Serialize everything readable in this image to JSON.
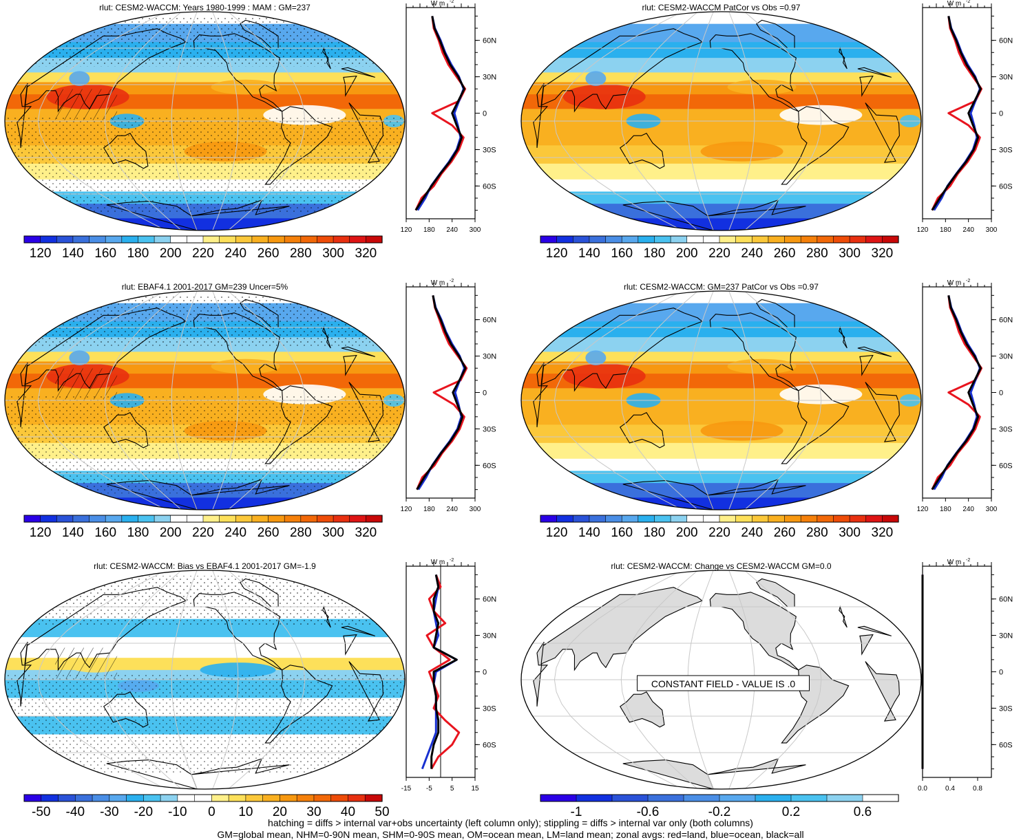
{
  "colors": {
    "map_colorbar": [
      "#2a00e6",
      "#1230e0",
      "#2a52d8",
      "#3a70dc",
      "#4a8ee6",
      "#58a8ee",
      "#2ab0ee",
      "#4ac2f0",
      "#8cd2f0",
      "#ffffff",
      "#ffffff",
      "#fff08a",
      "#fde05a",
      "#fbc83a",
      "#f9b020",
      "#f79810",
      "#f5800a",
      "#f26808",
      "#ee4c08",
      "#e83010",
      "#de1414",
      "#c80808"
    ],
    "bias_colorbar": [
      "#2a00e6",
      "#1230e0",
      "#2a52d8",
      "#3a70dc",
      "#4a8ee6",
      "#58a8ee",
      "#2ab0ee",
      "#4ac2f0",
      "#8cd2f0",
      "#ffffff",
      "#ffffff",
      "#fff08a",
      "#fde05a",
      "#fbc83a",
      "#f9b020",
      "#f79810",
      "#f5800a",
      "#f26808",
      "#ee4c08",
      "#e83010",
      "#c80808"
    ],
    "change_colorbar": [
      "#2a00e6",
      "#1230e0",
      "#2a52d8",
      "#3a70dc",
      "#4a8ee6",
      "#58a8ee",
      "#2ab0ee",
      "#4ac2f0",
      "#8cd2f0",
      "#ffffff"
    ],
    "land_line": "#e8141e",
    "ocean_line": "#1830d0",
    "all_line": "#000000",
    "land_fill": "#dcdcdc"
  },
  "chart_data": [
    {
      "id": "panel-model-mam",
      "type": "heatmap",
      "title": "rlut: CESM2-WACCM: Years 1980-1999 : MAM : GM=237",
      "colorbar_ticks": [
        "120",
        "140",
        "160",
        "180",
        "200",
        "220",
        "240",
        "260",
        "280",
        "300",
        "320"
      ],
      "zonal": {
        "units": "W m-2",
        "ylabels": [
          "60N",
          "30N",
          "0",
          "30S",
          "60S"
        ],
        "xticks": [
          "120",
          "180",
          "240",
          "300"
        ],
        "xlim": [
          120,
          300
        ],
        "lat": [
          80,
          70,
          60,
          50,
          40,
          30,
          20,
          10,
          0,
          -10,
          -20,
          -30,
          -40,
          -50,
          -60,
          -70,
          -80
        ],
        "land": [
          188,
          192,
          205,
          215,
          230,
          252,
          274,
          258,
          188,
          240,
          270,
          258,
          238,
          212,
          192,
          160,
          145
        ],
        "ocean": [
          188,
          195,
          210,
          222,
          238,
          258,
          270,
          258,
          246,
          255,
          262,
          252,
          232,
          208,
          185,
          170,
          150
        ],
        "all": [
          188,
          194,
          208,
          220,
          235,
          256,
          272,
          256,
          240,
          252,
          265,
          254,
          234,
          209,
          186,
          165,
          145
        ]
      }
    },
    {
      "id": "panel-model-patcor",
      "type": "heatmap",
      "title": "rlut: CESM2-WACCM PatCor vs Obs =0.97",
      "colorbar_ticks": [
        "120",
        "140",
        "160",
        "180",
        "200",
        "220",
        "240",
        "260",
        "280",
        "300",
        "320"
      ],
      "zonal": {
        "units": "W m-2",
        "ylabels": [
          "60N",
          "30N",
          "0",
          "30S",
          "60S"
        ],
        "xticks": [
          "120",
          "180",
          "240",
          "300"
        ],
        "xlim": [
          120,
          300
        ],
        "lat": [
          80,
          70,
          60,
          50,
          40,
          30,
          20,
          10,
          0,
          -10,
          -20,
          -30,
          -40,
          -50,
          -60,
          -70,
          -80
        ],
        "land": [
          188,
          192,
          205,
          215,
          230,
          252,
          274,
          258,
          188,
          240,
          270,
          258,
          238,
          212,
          192,
          160,
          145
        ],
        "ocean": [
          188,
          195,
          210,
          222,
          238,
          258,
          270,
          258,
          246,
          255,
          262,
          252,
          232,
          208,
          185,
          170,
          150
        ],
        "all": [
          188,
          194,
          208,
          220,
          235,
          256,
          272,
          256,
          240,
          252,
          265,
          254,
          234,
          209,
          186,
          165,
          145
        ]
      }
    },
    {
      "id": "panel-obs",
      "type": "heatmap",
      "title": "rlut: EBAF4.1 2001-2017 GM=239 Uncer=5%",
      "colorbar_ticks": [
        "120",
        "140",
        "160",
        "180",
        "200",
        "220",
        "240",
        "260",
        "280",
        "300",
        "320"
      ],
      "zonal": {
        "units": "W m-2",
        "ylabels": [
          "60N",
          "30N",
          "0",
          "30S",
          "60S"
        ],
        "xticks": [
          "120",
          "180",
          "240",
          "300"
        ],
        "xlim": [
          120,
          300
        ],
        "lat": [
          80,
          70,
          60,
          50,
          40,
          30,
          20,
          10,
          0,
          -10,
          -20,
          -30,
          -40,
          -50,
          -60,
          -70,
          -80
        ],
        "land": [
          190,
          195,
          207,
          218,
          232,
          255,
          278,
          262,
          192,
          245,
          272,
          260,
          240,
          214,
          194,
          162,
          148
        ],
        "ocean": [
          190,
          197,
          212,
          224,
          240,
          260,
          272,
          260,
          248,
          257,
          264,
          254,
          234,
          210,
          188,
          172,
          152
        ],
        "all": [
          190,
          196,
          210,
          222,
          237,
          258,
          275,
          259,
          242,
          254,
          267,
          256,
          236,
          211,
          189,
          167,
          148
        ]
      }
    },
    {
      "id": "panel-model-gm",
      "type": "heatmap",
      "title": "rlut: CESM2-WACCM: GM=237 PatCor vs Obs =0.97",
      "colorbar_ticks": [
        "120",
        "140",
        "160",
        "180",
        "200",
        "220",
        "240",
        "260",
        "280",
        "300",
        "320"
      ],
      "zonal": {
        "units": "W m-2",
        "ylabels": [
          "60N",
          "30N",
          "0",
          "30S",
          "60S"
        ],
        "xticks": [
          "120",
          "180",
          "240",
          "300"
        ],
        "xlim": [
          120,
          300
        ],
        "lat": [
          80,
          70,
          60,
          50,
          40,
          30,
          20,
          10,
          0,
          -10,
          -20,
          -30,
          -40,
          -50,
          -60,
          -70,
          -80
        ],
        "land": [
          188,
          192,
          205,
          215,
          230,
          252,
          274,
          258,
          188,
          240,
          270,
          258,
          238,
          212,
          192,
          160,
          145
        ],
        "ocean": [
          188,
          195,
          210,
          222,
          238,
          258,
          270,
          258,
          246,
          255,
          262,
          252,
          232,
          208,
          185,
          170,
          150
        ],
        "all": [
          188,
          194,
          208,
          220,
          235,
          256,
          272,
          256,
          240,
          252,
          265,
          254,
          234,
          209,
          186,
          165,
          145
        ]
      }
    },
    {
      "id": "panel-bias",
      "type": "heatmap",
      "title": "rlut: CESM2-WACCM: Bias vs EBAF4.1 2001-2017 GM=-1.9",
      "colorbar_ticks": [
        "-50",
        "-40",
        "-30",
        "-20",
        "-10",
        "0",
        "10",
        "20",
        "30",
        "40",
        "50"
      ],
      "zonal": {
        "units": "W m-2",
        "ylabels": [
          "60N",
          "30N",
          "0",
          "30S",
          "60S"
        ],
        "xticks": [
          "-15",
          "-5",
          "5",
          "15"
        ],
        "xlim": [
          -15,
          15
        ],
        "lat": [
          80,
          70,
          60,
          50,
          40,
          30,
          20,
          10,
          0,
          -10,
          -20,
          -30,
          -40,
          -50,
          -60,
          -70,
          -80
        ],
        "land": [
          -2,
          0,
          -5,
          -3,
          2,
          -6,
          -3,
          4,
          -5,
          -3,
          -1,
          -3,
          2,
          8,
          5,
          -1,
          -4
        ],
        "ocean": [
          -2,
          -1,
          -2,
          -3,
          -2,
          -1,
          -3,
          7,
          -2,
          -3,
          -2,
          -2,
          -2,
          -2,
          -4,
          -6,
          -8
        ],
        "all": [
          -2,
          -1,
          -3,
          -3,
          -1,
          -2,
          -3,
          7,
          -3,
          -3,
          -2,
          -2,
          -1,
          -1,
          -3,
          -4,
          -4
        ]
      }
    },
    {
      "id": "panel-change",
      "type": "heatmap",
      "title": "rlut: CESM2-WACCM: Change vs CESM2-WACCM GM=0.0",
      "colorbar_ticks": [
        "-1",
        "-0.6",
        "-0.2",
        "0.2",
        "0.6"
      ],
      "annotation": "CONSTANT FIELD - VALUE IS .0",
      "zonal": {
        "units": "W m-2",
        "ylabels": [
          "60N",
          "30N",
          "0",
          "30S",
          "60S"
        ],
        "xticks": [
          "0.0",
          "0.4",
          "0.8"
        ],
        "xlim": [
          0,
          1
        ],
        "lat": [
          80,
          -80
        ],
        "land": [
          0,
          0
        ],
        "ocean": [
          0,
          0
        ],
        "all": [
          0,
          0
        ]
      }
    }
  ],
  "footer": {
    "line1": "hatching = diffs > internal var+obs uncertainty (left column only); stippling = diffs > internal var only (both columns)",
    "line2": "GM=global mean, NHM=0-90N mean, SHM=0-90S mean, OM=ocean mean, LM=land mean; zonal avgs: red=land, blue=ocean, black=all"
  }
}
